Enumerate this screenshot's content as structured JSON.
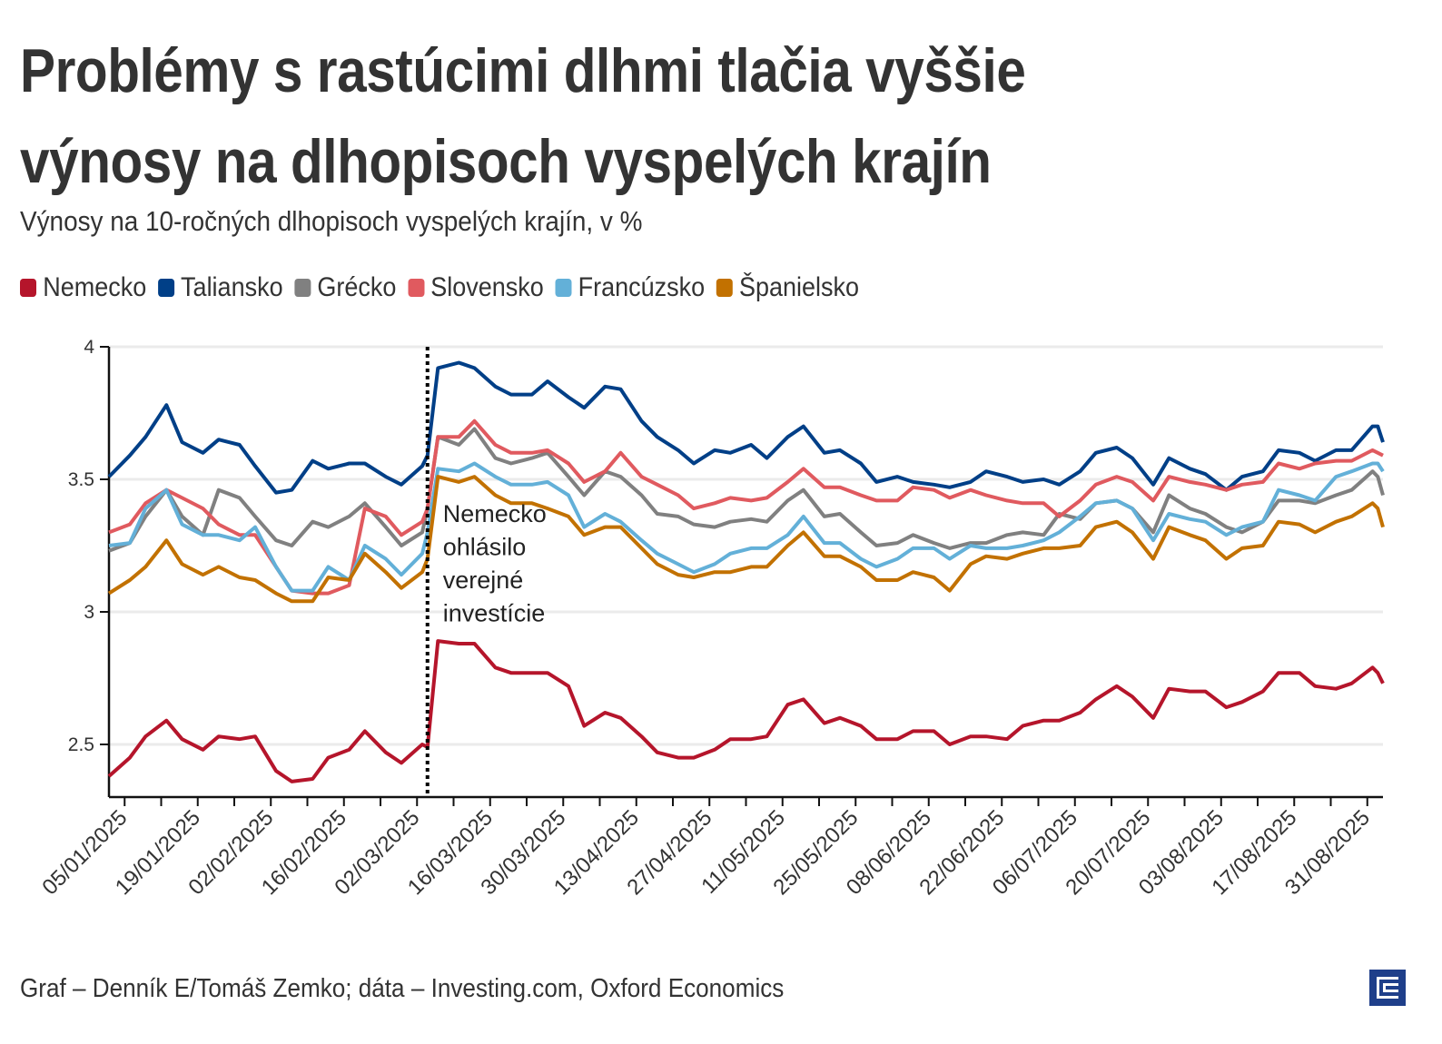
{
  "title_lines": [
    "Problémy s rastúcimi dlhmi tlačia vyššie",
    "výnosy na dlhopisoch vyspelých krajín"
  ],
  "subtitle": "Výnosy na 10-ročných dlhopisoch vyspelých krajín, v %",
  "source": "Graf – Denník E/Tomáš Zemko; dáta – Investing.com, Oxford Economics",
  "logo": {
    "name": "Denník E logo",
    "icon": "e-logo-icon",
    "color": "#1f3f8a"
  },
  "chart_data": {
    "type": "line",
    "title": "Problémy s rastúcimi dlhmi tlačia vyššie výnosy na dlhopisoch vyspelých krajín",
    "subtitle": "Výnosy na 10-ročných dlhopisoch vyspelých krajín, v %",
    "ylim": [
      2.3,
      4.0
    ],
    "xlim": [
      "02/01/2025",
      "03/09/2025"
    ],
    "yticks": [
      2.5,
      3,
      3.5,
      4
    ],
    "ytick_labels": [
      "2.5",
      "3",
      "3.5",
      "4"
    ],
    "xtick_labels": [
      "05/01/2025",
      "19/01/2025",
      "02/02/2025",
      "16/02/2025",
      "02/03/2025",
      "16/03/2025",
      "30/03/2025",
      "13/04/2025",
      "27/04/2025",
      "11/05/2025",
      "25/05/2025",
      "08/06/2025",
      "22/06/2025",
      "06/07/2025",
      "20/07/2025",
      "03/08/2025",
      "17/08/2025",
      "31/08/2025"
    ],
    "grid": "horizontal",
    "legend_position": "top",
    "annotation": {
      "date": "04/03/2025",
      "lines": [
        "Nemecko",
        "ohlásilo",
        "verejné",
        "investície"
      ],
      "style": "dotted-vertical-line"
    },
    "x": [
      "02/01/2025",
      "06/01/2025",
      "09/01/2025",
      "13/01/2025",
      "16/01/2025",
      "20/01/2025",
      "23/01/2025",
      "27/01/2025",
      "30/01/2025",
      "03/02/2025",
      "06/02/2025",
      "10/02/2025",
      "13/02/2025",
      "17/02/2025",
      "20/02/2025",
      "24/02/2025",
      "27/02/2025",
      "03/03/2025",
      "04/03/2025",
      "06/03/2025",
      "10/03/2025",
      "13/03/2025",
      "17/03/2025",
      "20/03/2025",
      "24/03/2025",
      "27/03/2025",
      "31/03/2025",
      "03/04/2025",
      "07/04/2025",
      "10/04/2025",
      "14/04/2025",
      "17/04/2025",
      "21/04/2025",
      "24/04/2025",
      "28/04/2025",
      "01/05/2025",
      "05/05/2025",
      "08/05/2025",
      "12/05/2025",
      "15/05/2025",
      "19/05/2025",
      "22/05/2025",
      "26/05/2025",
      "29/05/2025",
      "02/06/2025",
      "05/06/2025",
      "09/06/2025",
      "12/06/2025",
      "16/06/2025",
      "19/06/2025",
      "23/06/2025",
      "26/06/2025",
      "30/06/2025",
      "03/07/2025",
      "07/07/2025",
      "10/07/2025",
      "14/07/2025",
      "17/07/2025",
      "21/07/2025",
      "24/07/2025",
      "28/07/2025",
      "31/07/2025",
      "04/08/2025",
      "07/08/2025",
      "11/08/2025",
      "14/08/2025",
      "18/08/2025",
      "21/08/2025",
      "25/08/2025",
      "28/08/2025",
      "01/09/2025",
      "02/09/2025",
      "03/09/2025"
    ],
    "series": [
      {
        "name": "Nemecko",
        "color": "#b5152b",
        "values": [
          2.38,
          2.45,
          2.53,
          2.59,
          2.52,
          2.48,
          2.53,
          2.52,
          2.53,
          2.4,
          2.36,
          2.37,
          2.45,
          2.48,
          2.55,
          2.47,
          2.43,
          2.5,
          2.49,
          2.89,
          2.88,
          2.88,
          2.79,
          2.77,
          2.77,
          2.77,
          2.72,
          2.57,
          2.62,
          2.6,
          2.53,
          2.47,
          2.45,
          2.45,
          2.48,
          2.52,
          2.52,
          2.53,
          2.65,
          2.67,
          2.58,
          2.6,
          2.57,
          2.52,
          2.52,
          2.55,
          2.55,
          2.5,
          2.53,
          2.53,
          2.52,
          2.57,
          2.59,
          2.59,
          2.62,
          2.67,
          2.72,
          2.68,
          2.6,
          2.71,
          2.7,
          2.7,
          2.64,
          2.66,
          2.7,
          2.77,
          2.77,
          2.72,
          2.71,
          2.73,
          2.79,
          2.77,
          2.73
        ]
      },
      {
        "name": "Taliansko",
        "color": "#003f87",
        "values": [
          3.51,
          3.59,
          3.66,
          3.78,
          3.64,
          3.6,
          3.65,
          3.63,
          3.55,
          3.45,
          3.46,
          3.57,
          3.54,
          3.56,
          3.56,
          3.51,
          3.48,
          3.55,
          3.59,
          3.92,
          3.94,
          3.92,
          3.85,
          3.82,
          3.82,
          3.87,
          3.81,
          3.77,
          3.85,
          3.84,
          3.72,
          3.66,
          3.61,
          3.56,
          3.61,
          3.6,
          3.63,
          3.58,
          3.66,
          3.7,
          3.6,
          3.61,
          3.56,
          3.49,
          3.51,
          3.49,
          3.48,
          3.47,
          3.49,
          3.53,
          3.51,
          3.49,
          3.5,
          3.48,
          3.53,
          3.6,
          3.62,
          3.58,
          3.48,
          3.58,
          3.54,
          3.52,
          3.46,
          3.51,
          3.53,
          3.61,
          3.6,
          3.57,
          3.61,
          3.61,
          3.7,
          3.7,
          3.64
        ]
      },
      {
        "name": "Grécko",
        "color": "#808080",
        "values": [
          3.23,
          3.26,
          3.36,
          3.46,
          3.36,
          3.29,
          3.46,
          3.43,
          3.36,
          3.27,
          3.25,
          3.34,
          3.32,
          3.36,
          3.41,
          3.32,
          3.25,
          3.3,
          3.39,
          3.66,
          3.63,
          3.69,
          3.58,
          3.56,
          3.58,
          3.6,
          3.51,
          3.44,
          3.53,
          3.51,
          3.44,
          3.37,
          3.36,
          3.33,
          3.32,
          3.34,
          3.35,
          3.34,
          3.42,
          3.46,
          3.36,
          3.37,
          3.3,
          3.25,
          3.26,
          3.29,
          3.26,
          3.24,
          3.26,
          3.26,
          3.29,
          3.3,
          3.29,
          3.37,
          3.35,
          3.41,
          3.42,
          3.39,
          3.3,
          3.44,
          3.39,
          3.37,
          3.32,
          3.3,
          3.34,
          3.42,
          3.42,
          3.41,
          3.44,
          3.46,
          3.53,
          3.51,
          3.44
        ]
      },
      {
        "name": "Slovensko",
        "color": "#e05a5f",
        "values": [
          3.3,
          3.33,
          3.41,
          3.46,
          3.43,
          3.39,
          3.33,
          3.29,
          3.29,
          3.17,
          3.08,
          3.07,
          3.07,
          3.1,
          3.39,
          3.36,
          3.29,
          3.34,
          3.39,
          3.66,
          3.66,
          3.72,
          3.63,
          3.6,
          3.6,
          3.61,
          3.56,
          3.49,
          3.53,
          3.6,
          3.51,
          3.48,
          3.44,
          3.39,
          3.41,
          3.43,
          3.42,
          3.43,
          3.49,
          3.54,
          3.47,
          3.47,
          3.44,
          3.42,
          3.42,
          3.47,
          3.46,
          3.43,
          3.46,
          3.44,
          3.42,
          3.41,
          3.41,
          3.36,
          3.42,
          3.48,
          3.51,
          3.49,
          3.42,
          3.51,
          3.49,
          3.48,
          3.46,
          3.48,
          3.49,
          3.56,
          3.54,
          3.56,
          3.57,
          3.57,
          3.61,
          3.6,
          3.59
        ]
      },
      {
        "name": "Francúzsko",
        "color": "#63b0d8",
        "values": [
          3.25,
          3.26,
          3.39,
          3.46,
          3.33,
          3.29,
          3.29,
          3.27,
          3.32,
          3.17,
          3.08,
          3.08,
          3.17,
          3.12,
          3.25,
          3.2,
          3.14,
          3.22,
          3.3,
          3.54,
          3.53,
          3.56,
          3.51,
          3.48,
          3.48,
          3.49,
          3.44,
          3.32,
          3.37,
          3.34,
          3.27,
          3.22,
          3.18,
          3.15,
          3.18,
          3.22,
          3.24,
          3.24,
          3.29,
          3.36,
          3.26,
          3.26,
          3.2,
          3.17,
          3.2,
          3.24,
          3.24,
          3.2,
          3.25,
          3.24,
          3.24,
          3.25,
          3.27,
          3.3,
          3.36,
          3.41,
          3.42,
          3.39,
          3.27,
          3.37,
          3.35,
          3.34,
          3.29,
          3.32,
          3.34,
          3.46,
          3.44,
          3.42,
          3.51,
          3.53,
          3.56,
          3.56,
          3.53
        ]
      },
      {
        "name": "Španielsko",
        "color": "#c27100",
        "values": [
          3.07,
          3.12,
          3.17,
          3.27,
          3.18,
          3.14,
          3.17,
          3.13,
          3.12,
          3.07,
          3.04,
          3.04,
          3.13,
          3.12,
          3.22,
          3.15,
          3.09,
          3.15,
          3.2,
          3.51,
          3.49,
          3.51,
          3.44,
          3.41,
          3.41,
          3.39,
          3.36,
          3.29,
          3.32,
          3.32,
          3.24,
          3.18,
          3.14,
          3.13,
          3.15,
          3.15,
          3.17,
          3.17,
          3.25,
          3.3,
          3.21,
          3.21,
          3.17,
          3.12,
          3.12,
          3.15,
          3.13,
          3.08,
          3.18,
          3.21,
          3.2,
          3.22,
          3.24,
          3.24,
          3.25,
          3.32,
          3.34,
          3.3,
          3.2,
          3.32,
          3.29,
          3.27,
          3.2,
          3.24,
          3.25,
          3.34,
          3.33,
          3.3,
          3.34,
          3.36,
          3.41,
          3.39,
          3.32
        ]
      }
    ]
  }
}
